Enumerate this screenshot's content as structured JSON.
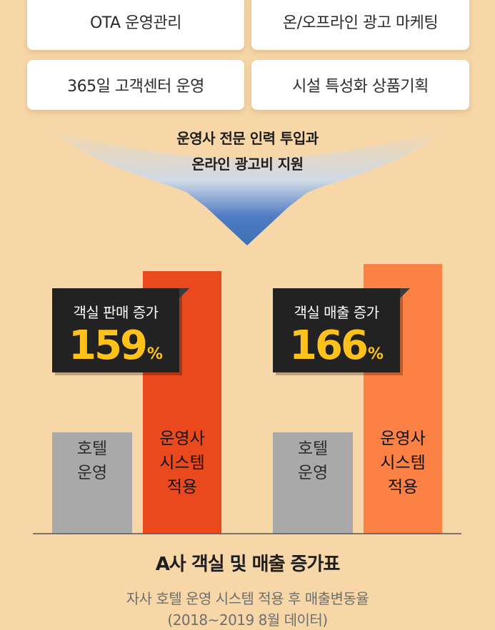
{
  "services": [
    "OTA 운영관리",
    "온/오프라인 광고 마케팅",
    "365일 고객센터 운영",
    "시설 특성화 상품기획"
  ],
  "headline": {
    "line1": "운영사 전문 인력 투입과",
    "line2": "온라인 광고비 지원"
  },
  "colors": {
    "background": "#f7d7a8",
    "gray_bar": "#a9a9a9",
    "red_bar": "#e9491c",
    "orange_bar": "#fb8144",
    "callout_value": "#ffc21a",
    "arrow_top": "#4f7cc3",
    "arrow_bottom": "#3f6fb3"
  },
  "callouts": [
    {
      "label": "객실 판매 증가",
      "value": "159",
      "unit": "%"
    },
    {
      "label": "객실 매출 증가",
      "value": "166",
      "unit": "%"
    }
  ],
  "chart_data": {
    "type": "bar",
    "title": "A사 객실 및 매출 증가표",
    "subtitle": "자사 호텔 운영 시스템 적용 후 매출변동율",
    "period_note": "(2018~2019 8월 데이터)",
    "categories": [
      "객실 판매 증가",
      "객실 매출 증가"
    ],
    "series": [
      {
        "name": "호텔 운영",
        "values": [
          100,
          100
        ]
      },
      {
        "name": "운영사 시스템 적용",
        "values": [
          259,
          266
        ]
      }
    ],
    "bar_labels": {
      "baseline": [
        "호텔",
        "운영"
      ],
      "system": [
        "운영사",
        "시스템",
        "적용"
      ]
    },
    "ylim": [
      0,
      290
    ],
    "grid": false,
    "legend": "none"
  }
}
